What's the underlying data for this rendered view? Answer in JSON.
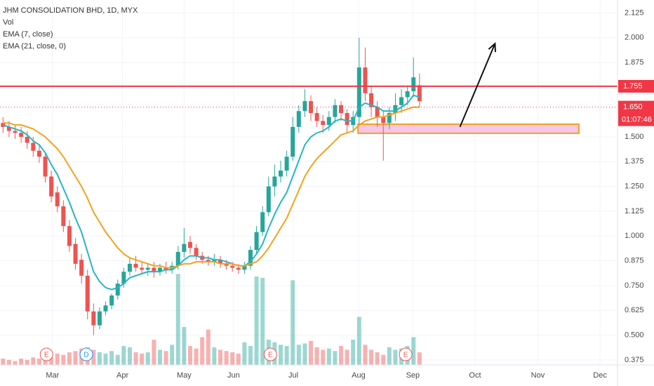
{
  "chart_data": {
    "type": "candlestick",
    "title": "JHM CONSOLIDATION BHD, 1D, MYX",
    "legend_items": [
      "Vol",
      "EMA (7, close)",
      "EMA (21, close, 0)"
    ],
    "open": [
      1.57,
      1.55,
      1.53,
      1.52,
      1.5,
      1.47,
      1.43,
      1.4,
      1.3,
      1.22,
      1.15,
      1.05,
      0.96,
      0.88,
      0.8,
      0.62,
      0.55,
      0.62,
      0.65,
      0.7,
      0.76,
      0.82,
      0.86,
      0.84,
      0.83,
      0.84,
      0.82,
      0.84,
      0.83,
      0.85,
      0.92,
      0.97,
      0.94,
      0.9,
      0.88,
      0.87,
      0.88,
      0.86,
      0.85,
      0.84,
      0.83,
      0.85,
      0.93,
      1.02,
      1.12,
      1.25,
      1.3,
      1.33,
      1.4,
      1.55,
      1.63,
      1.68,
      1.62,
      1.58,
      1.56,
      1.6,
      1.66,
      1.62,
      1.56,
      1.6,
      1.85,
      1.72,
      1.65,
      1.6,
      1.57,
      1.62,
      1.66,
      1.7,
      1.73,
      1.76
    ],
    "high": [
      1.6,
      1.58,
      1.56,
      1.55,
      1.53,
      1.5,
      1.46,
      1.42,
      1.33,
      1.25,
      1.18,
      1.08,
      0.99,
      0.91,
      0.83,
      0.66,
      0.64,
      0.67,
      0.71,
      0.78,
      0.84,
      0.89,
      0.9,
      0.87,
      0.86,
      0.87,
      0.86,
      0.87,
      0.87,
      0.95,
      1.04,
      1.0,
      0.96,
      0.92,
      0.9,
      0.91,
      0.9,
      0.88,
      0.87,
      0.86,
      0.87,
      0.95,
      1.05,
      1.15,
      1.3,
      1.36,
      1.38,
      1.43,
      1.6,
      1.66,
      1.74,
      1.71,
      1.65,
      1.61,
      1.63,
      1.69,
      1.68,
      1.64,
      1.63,
      2.0,
      1.95,
      1.75,
      1.68,
      1.63,
      1.65,
      1.72,
      1.74,
      1.76,
      1.9,
      1.82
    ],
    "low": [
      1.52,
      1.5,
      1.49,
      1.47,
      1.44,
      1.4,
      1.37,
      1.27,
      1.17,
      1.12,
      1.02,
      0.92,
      0.83,
      0.76,
      0.58,
      0.5,
      0.53,
      0.6,
      0.63,
      0.68,
      0.74,
      0.8,
      0.82,
      0.81,
      0.8,
      0.79,
      0.8,
      0.81,
      0.81,
      0.83,
      0.89,
      0.91,
      0.88,
      0.86,
      0.85,
      0.85,
      0.84,
      0.83,
      0.82,
      0.81,
      0.81,
      0.83,
      0.91,
      1.0,
      1.1,
      1.2,
      1.27,
      1.3,
      1.38,
      1.52,
      1.6,
      1.58,
      1.55,
      1.52,
      1.53,
      1.57,
      1.58,
      1.52,
      1.52,
      1.56,
      1.68,
      1.6,
      1.55,
      1.38,
      1.54,
      1.58,
      1.62,
      1.66,
      1.7,
      1.65
    ],
    "close": [
      1.55,
      1.53,
      1.52,
      1.5,
      1.47,
      1.43,
      1.4,
      1.3,
      1.2,
      1.15,
      1.05,
      0.95,
      0.86,
      0.8,
      0.62,
      0.55,
      0.62,
      0.65,
      0.7,
      0.76,
      0.82,
      0.86,
      0.84,
      0.83,
      0.84,
      0.82,
      0.84,
      0.83,
      0.85,
      0.92,
      0.96,
      0.94,
      0.9,
      0.88,
      0.87,
      0.88,
      0.86,
      0.85,
      0.84,
      0.83,
      0.85,
      0.93,
      1.02,
      1.12,
      1.25,
      1.3,
      1.33,
      1.4,
      1.55,
      1.63,
      1.68,
      1.62,
      1.58,
      1.56,
      1.6,
      1.66,
      1.62,
      1.56,
      1.6,
      1.85,
      1.72,
      1.65,
      1.6,
      1.57,
      1.62,
      1.66,
      1.7,
      1.73,
      1.8,
      1.68
    ],
    "volume": [
      0.5,
      0.4,
      0.3,
      0.5,
      0.4,
      0.6,
      0.5,
      0.7,
      0.6,
      0.9,
      0.8,
      1.0,
      1.1,
      1.3,
      1.4,
      1.2,
      1.0,
      0.9,
      1.1,
      0.8,
      1.5,
      1.4,
      1.0,
      0.9,
      1.0,
      2.0,
      1.2,
      1.1,
      1.6,
      7.2,
      3.0,
      1.5,
      1.3,
      2.2,
      2.8,
      1.4,
      1.2,
      1.1,
      1.0,
      0.9,
      1.8,
      1.5,
      7.0,
      6.9,
      2.0,
      1.8,
      1.6,
      1.5,
      6.7,
      1.6,
      1.7,
      1.9,
      1.4,
      1.2,
      1.3,
      1.1,
      1.5,
      1.2,
      2.0,
      3.8,
      1.6,
      1.2,
      1.0,
      0.8,
      1.4,
      1.2,
      1.3,
      1.5,
      2.2,
      1.0
    ],
    "vol_ylim": [
      0,
      10
    ],
    "series": [
      {
        "name": "EMA (7, close)",
        "color": "#26b5c6",
        "values": [
          1.56,
          1.55,
          1.54,
          1.53,
          1.51,
          1.48,
          1.46,
          1.42,
          1.36,
          1.31,
          1.24,
          1.17,
          1.09,
          1.02,
          0.92,
          0.82,
          0.77,
          0.74,
          0.73,
          0.74,
          0.76,
          0.79,
          0.8,
          0.81,
          0.82,
          0.82,
          0.82,
          0.83,
          0.83,
          0.85,
          0.88,
          0.9,
          0.9,
          0.89,
          0.89,
          0.88,
          0.88,
          0.87,
          0.86,
          0.85,
          0.85,
          0.87,
          0.91,
          0.96,
          1.04,
          1.11,
          1.17,
          1.22,
          1.3,
          1.38,
          1.46,
          1.5,
          1.52,
          1.53,
          1.55,
          1.58,
          1.59,
          1.58,
          1.58,
          1.65,
          1.67,
          1.66,
          1.65,
          1.63,
          1.63,
          1.63,
          1.65,
          1.67,
          1.71,
          1.7
        ]
      },
      {
        "name": "EMA (21, close, 0)",
        "color": "#f5a21b",
        "values": [
          1.57,
          1.57,
          1.56,
          1.56,
          1.55,
          1.54,
          1.52,
          1.5,
          1.47,
          1.44,
          1.4,
          1.35,
          1.3,
          1.25,
          1.19,
          1.12,
          1.07,
          1.02,
          0.98,
          0.94,
          0.91,
          0.89,
          0.88,
          0.87,
          0.86,
          0.85,
          0.85,
          0.84,
          0.84,
          0.85,
          0.86,
          0.86,
          0.87,
          0.87,
          0.87,
          0.87,
          0.86,
          0.86,
          0.86,
          0.85,
          0.85,
          0.86,
          0.87,
          0.9,
          0.94,
          0.99,
          1.04,
          1.09,
          1.16,
          1.23,
          1.3,
          1.35,
          1.39,
          1.42,
          1.45,
          1.48,
          1.51,
          1.52,
          1.53,
          1.56,
          1.58,
          1.59,
          1.6,
          1.6,
          1.61,
          1.62,
          1.63,
          1.64,
          1.65,
          1.65
        ]
      }
    ],
    "up_color": "#26a69a",
    "down_color": "#ef5350",
    "xlim": [
      -0.5,
      101.8
    ],
    "xticks": [
      {
        "value": 8.2,
        "label": "Mar"
      },
      {
        "value": 19.8,
        "label": "Apr"
      },
      {
        "value": 30,
        "label": "May"
      },
      {
        "value": 38.2,
        "label": "Jun"
      },
      {
        "value": 48.1,
        "label": "Jul"
      },
      {
        "value": 58.9,
        "label": "Aug"
      },
      {
        "value": 67.9,
        "label": "Sep"
      },
      {
        "value": 78.2,
        "label": "Oct"
      },
      {
        "value": 88.6,
        "label": "Nov"
      },
      {
        "value": 98.9,
        "label": "Dec"
      }
    ],
    "ylim": [
      0.35,
      2.19
    ],
    "yticks": [
      2.125,
      {
        "value": 2,
        "label": "2.000"
      },
      1.875,
      {
        "value": 1.5,
        "label": "1.500"
      },
      1.375,
      {
        "value": 1.25,
        "label": "1.250"
      },
      1.125,
      {
        "value": 1,
        "label": "1.000"
      },
      0.875,
      {
        "value": 0.75,
        "label": "0.750"
      },
      0.625,
      {
        "value": 0.5,
        "label": "0.500"
      },
      0.375
    ],
    "grid": true,
    "price_lines": [
      {
        "value": 1.755,
        "label": "1.755",
        "color": "#f23645",
        "style": "solid"
      },
      {
        "value": 1.65,
        "label": "1.650",
        "color": "#f23645",
        "style": "dotted",
        "countdown": "01:07:46"
      }
    ],
    "zone": {
      "x": [
        58.8,
        95.4
      ],
      "y": [
        1.518,
        1.564
      ],
      "fill": "#f7c6e8",
      "stroke": "#f5a21b"
    },
    "arrow": {
      "x": [
        75.7,
        81.5
      ],
      "y": [
        1.55,
        1.97
      ],
      "color": "#111111"
    },
    "events": [
      {
        "label": "E",
        "x": 7.2,
        "color": "#ef5350"
      },
      {
        "label": "D",
        "x": 13.8,
        "color": "#2196f3"
      },
      {
        "label": "E",
        "x": 44.3,
        "color": "#ef5350"
      },
      {
        "label": "E",
        "x": 66.7,
        "color": "#ef5350"
      }
    ]
  }
}
